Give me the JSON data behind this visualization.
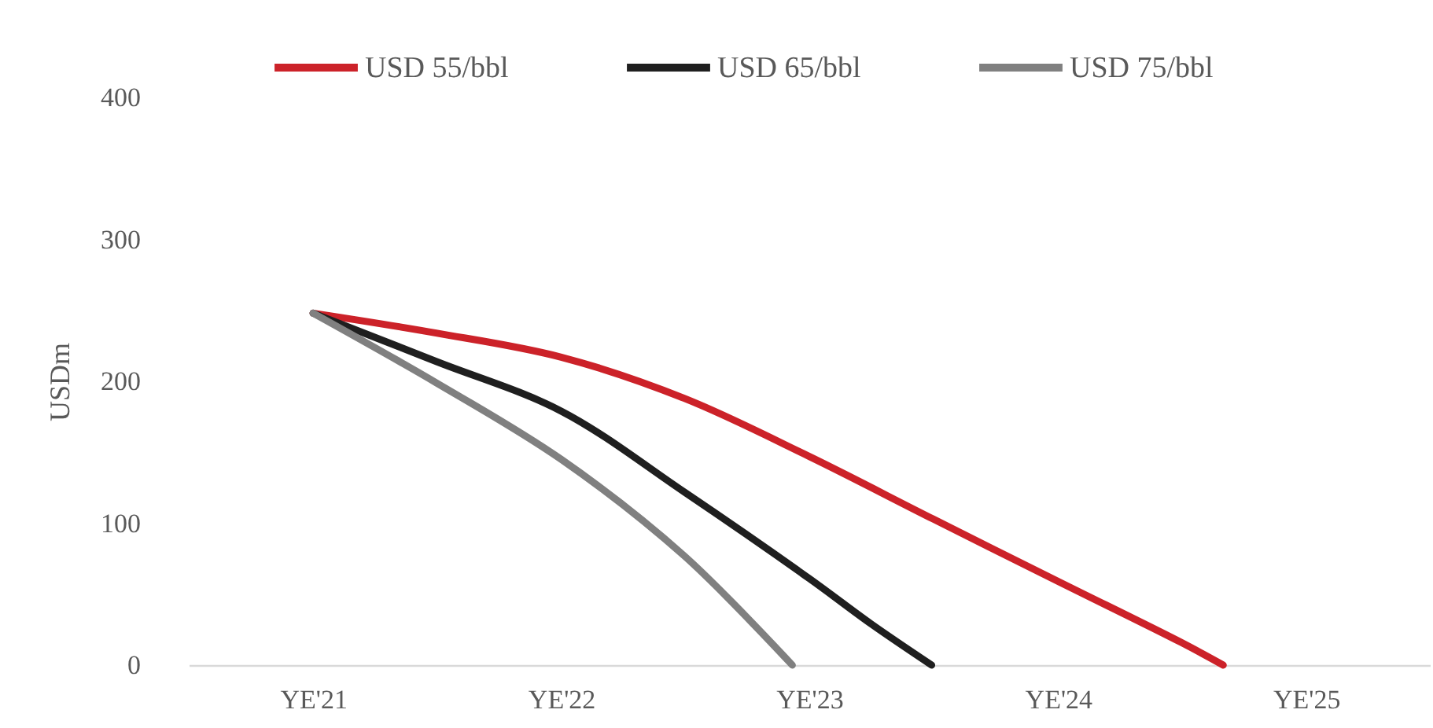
{
  "chart_data": {
    "type": "line",
    "ylabel": "USDm",
    "xlim": [
      "2021-07-01",
      "2026-07-01"
    ],
    "xticks": [
      {
        "value": "2021-12-31",
        "label": "YE'21"
      },
      {
        "value": "2022-12-31",
        "label": "YE'22"
      },
      {
        "value": "2023-12-31",
        "label": "YE'23"
      },
      {
        "value": "2024-12-31",
        "label": "YE'24"
      },
      {
        "value": "2025-12-31",
        "label": "YE'25"
      }
    ],
    "ylim": [
      0,
      400
    ],
    "yticks": [
      0,
      100,
      200,
      300,
      400
    ],
    "grid": false,
    "legend": "top",
    "marker": "none",
    "line_style": "solid",
    "series": [
      {
        "name": "USD 55/bbl",
        "color": "#cc2229",
        "x": [
          "2021-12-31",
          "2022-06-30",
          "2022-12-31",
          "2023-06-30",
          "2023-12-31",
          "2024-06-30",
          "2024-12-31",
          "2025-06-30",
          "2025-08-31"
        ],
        "values": [
          248,
          234,
          217,
          188,
          147,
          103,
          59,
          16,
          0
        ]
      },
      {
        "name": "USD 65/bbl",
        "color": "#1f1f1f",
        "x": [
          "2021-12-31",
          "2022-06-30",
          "2022-12-31",
          "2023-06-30",
          "2023-12-31",
          "2024-03-31",
          "2024-06-28"
        ],
        "values": [
          248,
          214,
          179,
          122,
          61,
          29,
          0
        ]
      },
      {
        "name": "USD 75/bbl",
        "color": "#808080",
        "x": [
          "2021-12-31",
          "2022-06-30",
          "2022-12-31",
          "2023-06-30",
          "2023-12-06"
        ],
        "values": [
          248,
          199,
          145,
          77,
          0
        ]
      }
    ]
  }
}
